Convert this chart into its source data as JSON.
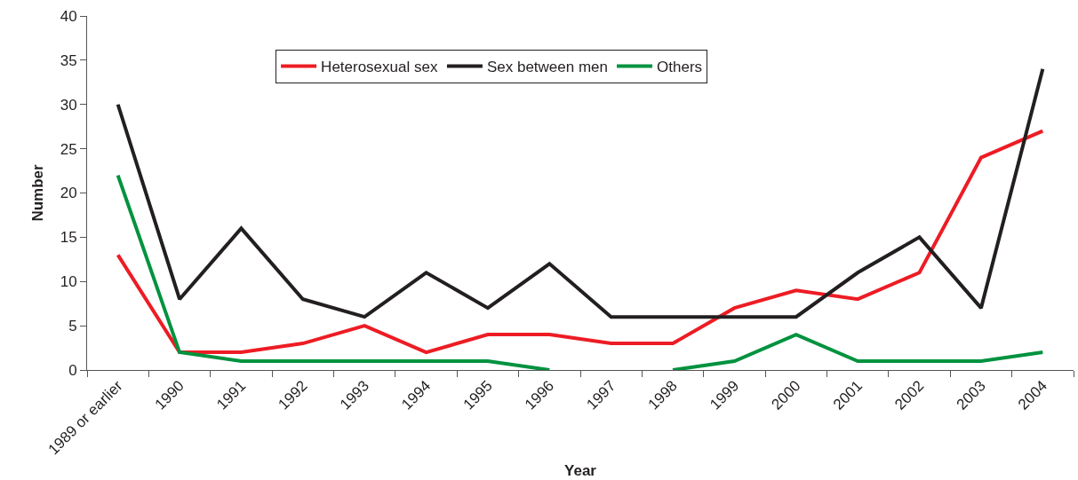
{
  "chart_data": {
    "type": "line",
    "xlabel": "Year",
    "ylabel": "Number",
    "categories": [
      "1989 or earlier",
      "1990",
      "1991",
      "1992",
      "1993",
      "1994",
      "1995",
      "1996",
      "1997",
      "1998",
      "1999",
      "2000",
      "2001",
      "2002",
      "2003",
      "2004"
    ],
    "series": [
      {
        "name": "Heterosexual sex",
        "color": "#ed1c24",
        "values": [
          13,
          2,
          2,
          3,
          5,
          2,
          4,
          4,
          3,
          3,
          7,
          9,
          8,
          11,
          24,
          27
        ]
      },
      {
        "name": "Sex between men",
        "color": "#231f20",
        "values": [
          30,
          8,
          16,
          8,
          6,
          11,
          7,
          12,
          6,
          6,
          6,
          6,
          11,
          15,
          7,
          34
        ]
      },
      {
        "name": "Others",
        "color": "#00923f",
        "values": [
          22,
          2,
          1,
          1,
          1,
          1,
          1,
          0,
          null,
          0,
          1,
          4,
          1,
          1,
          1,
          2
        ]
      }
    ],
    "ylim": [
      0,
      40
    ],
    "yticks": [
      0,
      5,
      10,
      15,
      20,
      25,
      30,
      35,
      40
    ],
    "legend": "top",
    "marker": "none",
    "line_style": "solid"
  }
}
